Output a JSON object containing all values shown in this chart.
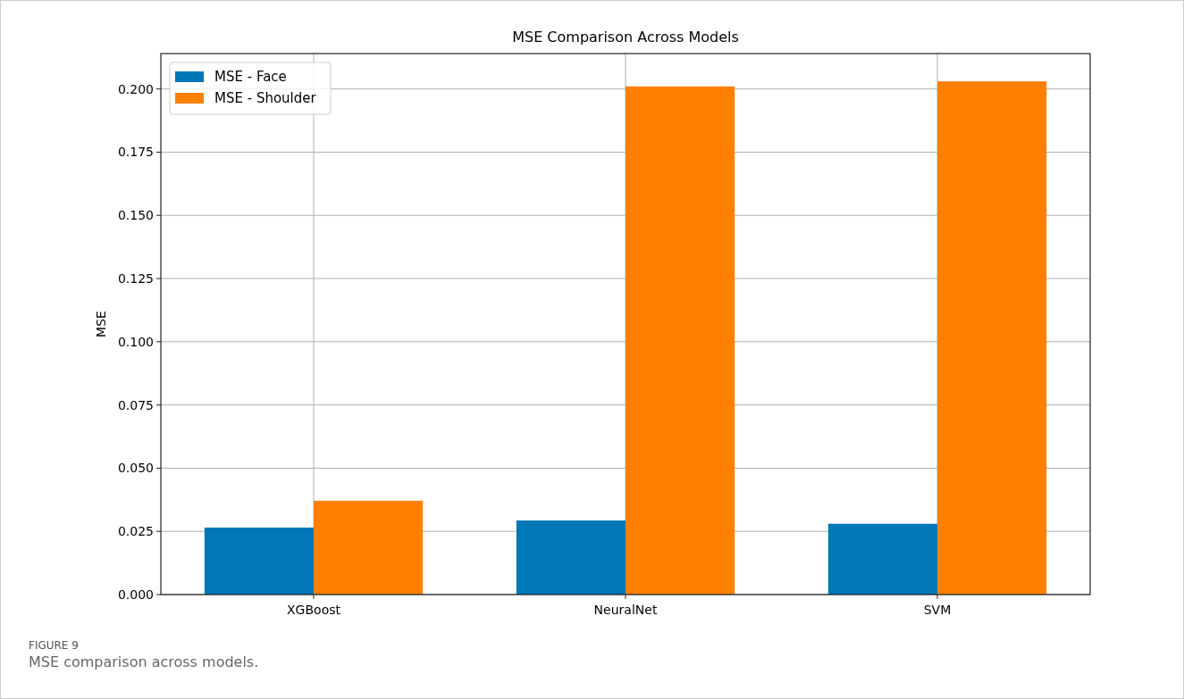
{
  "chart_data": {
    "type": "bar",
    "title": "MSE Comparison Across Models",
    "ylabel": "MSE",
    "categories": [
      "XGBoost",
      "NeuralNet",
      "SVM"
    ],
    "series": [
      {
        "name": "MSE - Face",
        "color": "#0077b6",
        "values": [
          0.0265,
          0.0293,
          0.028
        ]
      },
      {
        "name": "MSE - Shoulder",
        "color": "#ff7f00",
        "values": [
          0.0371,
          0.201,
          0.203
        ]
      }
    ],
    "ylim": [
      0,
      0.214
    ],
    "yticks": [
      {
        "value": 0,
        "label": "0.000"
      },
      {
        "value": 0.025,
        "label": "0.025"
      },
      {
        "value": 0.05,
        "label": "0.050"
      },
      {
        "value": 0.075,
        "label": "0.075"
      },
      {
        "value": 0.1,
        "label": "0.100"
      },
      {
        "value": 0.125,
        "label": "0.125"
      },
      {
        "value": 0.15,
        "label": "0.150"
      },
      {
        "value": 0.175,
        "label": "0.175"
      },
      {
        "value": 0.2,
        "label": "0.200"
      }
    ],
    "grid": true,
    "legend": "top left",
    "annotations": [
      "FIGURE 9",
      "MSE comparison across models."
    ]
  }
}
